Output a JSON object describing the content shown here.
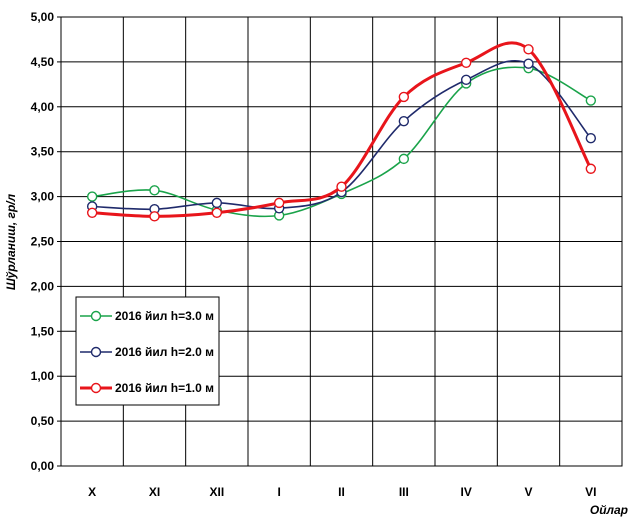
{
  "chart_data": {
    "type": "line",
    "categories": [
      "X",
      "XI",
      "XII",
      "I",
      "II",
      "III",
      "IV",
      "V",
      "VI"
    ],
    "ylabel": "Шўрланиш, гр/л",
    "xlabel": "Ойлар",
    "ylim": [
      0,
      5
    ],
    "y_ticks": [
      "0,00",
      "0,50",
      "1,00",
      "1,50",
      "2,00",
      "2,50",
      "3,00",
      "3,50",
      "4,00",
      "4,50",
      "5,00"
    ],
    "grid": true,
    "legend_position": "bottom-left",
    "series": [
      {
        "name": "2016 йил h=3.0 м",
        "color": "#1aa34a",
        "width": 1.6,
        "values": [
          3.0,
          3.07,
          2.85,
          2.79,
          3.03,
          3.42,
          4.26,
          4.43,
          4.07
        ]
      },
      {
        "name": "2016 йил h=2.0 м",
        "color": "#1f2a6b",
        "width": 1.6,
        "values": [
          2.89,
          2.86,
          2.93,
          2.87,
          3.05,
          3.84,
          4.3,
          4.48,
          3.65
        ]
      },
      {
        "name": "2016 йил h=1.0 м",
        "color": "#e8151b",
        "width": 3,
        "values": [
          2.82,
          2.78,
          2.82,
          2.93,
          3.11,
          4.11,
          4.49,
          4.64,
          3.31
        ]
      }
    ]
  }
}
